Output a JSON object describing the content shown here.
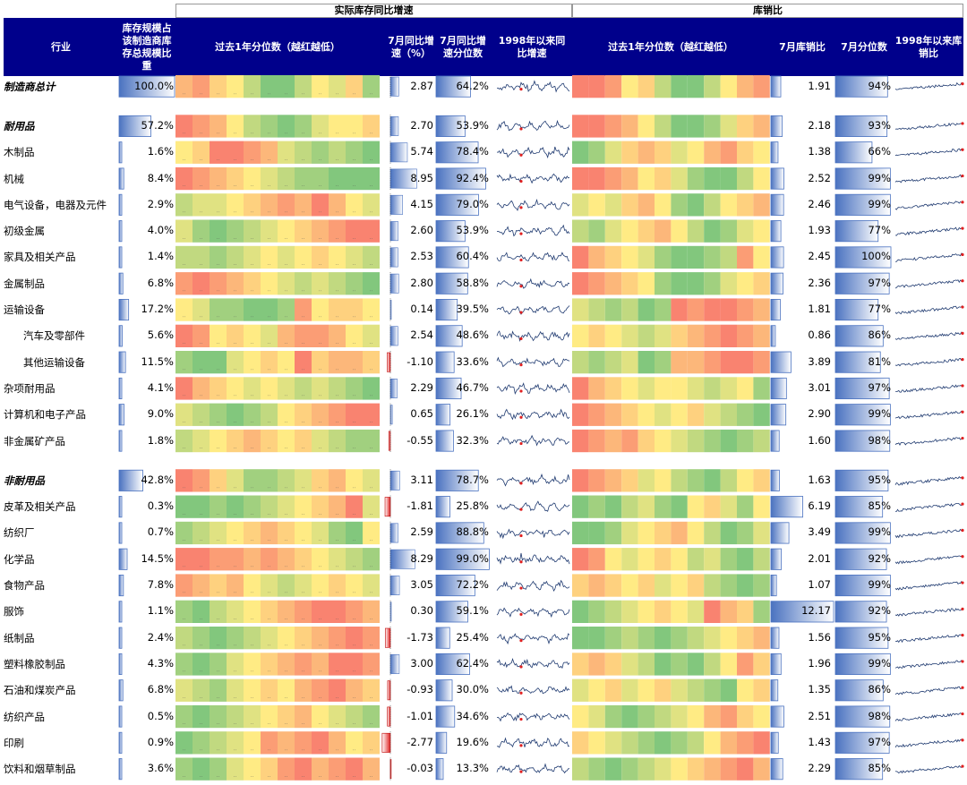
{
  "groups": {
    "inventory": "实际库存同比增速",
    "ratio": "库销比"
  },
  "headers": {
    "industry": "行业",
    "weight": "库存规模占该制造商库存总规模比重",
    "heat_inv": "过去1年分位数（越红越低）",
    "yoy": "7月同比增速（%）",
    "yoy_pct": "7月同比增速分位数",
    "spark_inv": "1998年以来同比增速",
    "heat_ratio": "过去1年分位数（越红越低）",
    "ratio": "7月库销比",
    "ratio_pct": "7月分位数",
    "spark_ratio": "1998年以来库销比"
  },
  "colors": {
    "header_bg": "#00008B",
    "bar_blue": "#4A72C0",
    "bar_red": "#E02020",
    "low": "#F8696B",
    "mid": "#FFEB84",
    "high": "#63BE7B"
  },
  "chart_data": {
    "type": "table",
    "rows": [
      {
        "name": "制造商总计",
        "bold": true,
        "weight": "100.0%",
        "weight_v": 100.0,
        "yoy": "2.87",
        "yoy_v": 2.87,
        "yoy_pct": "64.2%",
        "yoy_pct_v": 64.2,
        "ratio": "1.91",
        "ratio_v": 1.91,
        "ratio_pct": "94%",
        "ratio_pct_v": 94,
        "heat_inv": [
          0.3,
          0.2,
          0.4,
          0.5,
          0.7,
          0.9,
          0.9,
          0.7,
          0.5,
          0.6,
          0.4,
          0.8
        ],
        "heat_ratio": [
          0.1,
          0.1,
          0.2,
          0.5,
          0.4,
          0.7,
          0.9,
          0.9,
          0.7,
          0.5,
          0.3,
          0.2
        ]
      },
      {
        "gap": true
      },
      {
        "name": "耐用品",
        "bold": true,
        "weight": "57.2%",
        "weight_v": 57.2,
        "yoy": "2.70",
        "yoy_v": 2.7,
        "yoy_pct": "53.9%",
        "yoy_pct_v": 53.9,
        "ratio": "2.18",
        "ratio_v": 2.18,
        "ratio_pct": "93%",
        "ratio_pct_v": 93,
        "heat_inv": [
          0.1,
          0.2,
          0.3,
          0.5,
          0.7,
          0.8,
          0.9,
          0.8,
          0.6,
          0.5,
          0.5,
          0.4
        ],
        "heat_ratio": [
          0.1,
          0.1,
          0.2,
          0.3,
          0.5,
          0.7,
          0.9,
          0.9,
          0.8,
          0.6,
          0.4,
          0.3
        ]
      },
      {
        "name": "木制品",
        "weight": "1.6%",
        "weight_v": 1.6,
        "yoy": "5.74",
        "yoy_v": 5.74,
        "yoy_pct": "78.4%",
        "yoy_pct_v": 78.4,
        "ratio": "1.38",
        "ratio_v": 1.38,
        "ratio_pct": "66%",
        "ratio_pct_v": 66,
        "heat_inv": [
          0.5,
          0.4,
          0.1,
          0.1,
          0.2,
          0.3,
          0.6,
          0.7,
          0.8,
          0.7,
          0.8,
          0.9
        ],
        "heat_ratio": [
          0.9,
          0.8,
          0.6,
          0.4,
          0.3,
          0.4,
          0.6,
          0.5,
          0.3,
          0.2,
          0.4,
          0.5
        ]
      },
      {
        "name": "机械",
        "weight": "8.4%",
        "weight_v": 8.4,
        "yoy": "8.95",
        "yoy_v": 8.95,
        "yoy_pct": "92.4%",
        "yoy_pct_v": 92.4,
        "ratio": "2.52",
        "ratio_v": 2.52,
        "ratio_pct": "99%",
        "ratio_pct_v": 99,
        "heat_inv": [
          0.1,
          0.2,
          0.3,
          0.4,
          0.5,
          0.6,
          0.7,
          0.8,
          0.8,
          0.9,
          0.9,
          0.9
        ],
        "heat_ratio": [
          0.1,
          0.1,
          0.2,
          0.3,
          0.5,
          0.4,
          0.6,
          0.8,
          0.9,
          0.9,
          0.7,
          0.5
        ]
      },
      {
        "name": "电气设备，电器及元件",
        "weight": "2.9%",
        "weight_v": 2.9,
        "yoy": "4.15",
        "yoy_v": 4.15,
        "yoy_pct": "79.0%",
        "yoy_pct_v": 79.0,
        "ratio": "2.46",
        "ratio_v": 2.46,
        "ratio_pct": "99%",
        "ratio_pct_v": 99,
        "heat_inv": [
          0.7,
          0.6,
          0.6,
          0.5,
          0.4,
          0.3,
          0.2,
          0.3,
          0.1,
          0.3,
          0.5,
          0.6
        ],
        "heat_ratio": [
          0.6,
          0.5,
          0.6,
          0.4,
          0.3,
          0.5,
          0.8,
          0.9,
          0.7,
          0.5,
          0.4,
          0.3
        ]
      },
      {
        "name": "初级金属",
        "weight": "4.0%",
        "weight_v": 4.0,
        "yoy": "2.60",
        "yoy_v": 2.6,
        "yoy_pct": "53.9%",
        "yoy_pct_v": 53.9,
        "ratio": "1.93",
        "ratio_v": 1.93,
        "ratio_pct": "77%",
        "ratio_pct_v": 77,
        "heat_inv": [
          0.6,
          0.8,
          0.9,
          0.8,
          0.7,
          0.6,
          0.5,
          0.4,
          0.3,
          0.2,
          0.1,
          0.1
        ],
        "heat_ratio": [
          0.7,
          0.8,
          0.6,
          0.5,
          0.4,
          0.3,
          0.5,
          0.7,
          0.9,
          0.8,
          0.6,
          0.5
        ]
      },
      {
        "name": "家具及相关产品",
        "weight": "1.4%",
        "weight_v": 1.4,
        "yoy": "2.53",
        "yoy_v": 2.53,
        "yoy_pct": "60.4%",
        "yoy_pct_v": 60.4,
        "ratio": "2.45",
        "ratio_v": 2.45,
        "ratio_pct": "100%",
        "ratio_pct_v": 100,
        "heat_inv": [
          0.7,
          0.7,
          0.8,
          0.7,
          0.6,
          0.5,
          0.6,
          0.5,
          0.4,
          0.5,
          0.6,
          0.7
        ],
        "heat_ratio": [
          0.1,
          0.3,
          0.4,
          0.5,
          0.6,
          0.8,
          0.9,
          0.9,
          0.8,
          0.7,
          0.2,
          0.5
        ]
      },
      {
        "name": "金属制品",
        "weight": "6.8%",
        "weight_v": 6.8,
        "yoy": "2.80",
        "yoy_v": 2.8,
        "yoy_pct": "58.8%",
        "yoy_pct_v": 58.8,
        "ratio": "2.36",
        "ratio_v": 2.36,
        "ratio_pct": "97%",
        "ratio_pct_v": 97,
        "heat_inv": [
          0.2,
          0.1,
          0.2,
          0.3,
          0.4,
          0.5,
          0.6,
          0.7,
          0.6,
          0.7,
          0.8,
          0.9
        ],
        "heat_ratio": [
          0.1,
          0.2,
          0.3,
          0.4,
          0.5,
          0.8,
          0.9,
          0.9,
          0.8,
          0.6,
          0.5,
          0.4
        ]
      },
      {
        "name": "运输设备",
        "weight": "17.2%",
        "weight_v": 17.2,
        "yoy": "0.14",
        "yoy_v": 0.14,
        "yoy_pct": "39.5%",
        "yoy_pct_v": 39.5,
        "ratio": "1.81",
        "ratio_v": 1.81,
        "ratio_pct": "77%",
        "ratio_pct_v": 77,
        "heat_inv": [
          0.5,
          0.6,
          0.8,
          0.8,
          0.9,
          0.9,
          0.8,
          0.2,
          0.5,
          0.4,
          0.4,
          0.5
        ],
        "heat_ratio": [
          0.6,
          0.7,
          0.8,
          0.7,
          0.9,
          0.8,
          0.1,
          0.2,
          0.1,
          0.1,
          0.2,
          0.3
        ]
      },
      {
        "name": "汽车及零部件",
        "indent": true,
        "weight": "5.6%",
        "weight_v": 5.6,
        "yoy": "2.54",
        "yoy_v": 2.54,
        "yoy_pct": "48.6%",
        "yoy_pct_v": 48.6,
        "ratio": "0.86",
        "ratio_v": 0.86,
        "ratio_pct": "86%",
        "ratio_pct_v": 86,
        "heat_inv": [
          0.1,
          0.2,
          0.5,
          0.4,
          0.5,
          0.6,
          0.3,
          0.2,
          0.2,
          0.3,
          0.5,
          0.6
        ],
        "heat_ratio": [
          0.5,
          0.4,
          0.5,
          0.6,
          0.7,
          0.6,
          0.4,
          0.3,
          0.2,
          0.1,
          0.2,
          0.3
        ]
      },
      {
        "name": "其他运输设备",
        "indent": true,
        "weight": "11.5%",
        "weight_v": 11.5,
        "yoy": "-1.10",
        "yoy_v": -1.1,
        "yoy_pct": "33.6%",
        "yoy_pct_v": 33.6,
        "ratio": "3.89",
        "ratio_v": 3.89,
        "ratio_pct": "81%",
        "ratio_pct_v": 81,
        "heat_inv": [
          0.8,
          0.9,
          0.9,
          0.6,
          0.5,
          0.4,
          0.5,
          0.1,
          0.4,
          0.3,
          0.3,
          0.4
        ],
        "heat_ratio": [
          0.7,
          0.8,
          0.7,
          0.6,
          0.9,
          0.8,
          0.3,
          0.3,
          0.2,
          0.1,
          0.1,
          0.2
        ]
      },
      {
        "name": "杂项耐用品",
        "weight": "4.1%",
        "weight_v": 4.1,
        "yoy": "2.29",
        "yoy_v": 2.29,
        "yoy_pct": "46.7%",
        "yoy_pct_v": 46.7,
        "ratio": "3.01",
        "ratio_v": 3.01,
        "ratio_pct": "97%",
        "ratio_pct_v": 97,
        "heat_inv": [
          0.1,
          0.3,
          0.4,
          0.5,
          0.6,
          0.5,
          0.6,
          0.7,
          0.6,
          0.7,
          0.8,
          0.9
        ],
        "heat_ratio": [
          0.1,
          0.3,
          0.4,
          0.5,
          0.6,
          0.5,
          0.5,
          0.6,
          0.7,
          0.6,
          0.5,
          0.8
        ]
      },
      {
        "name": "计算机和电子产品",
        "weight": "9.0%",
        "weight_v": 9.0,
        "yoy": "0.65",
        "yoy_v": 0.65,
        "yoy_pct": "26.1%",
        "yoy_pct_v": 26.1,
        "ratio": "2.90",
        "ratio_v": 2.9,
        "ratio_pct": "99%",
        "ratio_pct_v": 99,
        "heat_inv": [
          0.6,
          0.7,
          0.8,
          0.9,
          0.8,
          0.7,
          0.5,
          0.4,
          0.3,
          0.2,
          0.1,
          0.1
        ],
        "heat_ratio": [
          0.1,
          0.2,
          0.3,
          0.4,
          0.5,
          0.6,
          0.5,
          0.4,
          0.6,
          0.7,
          0.8,
          0.9
        ]
      },
      {
        "name": "非金属矿产品",
        "weight": "1.8%",
        "weight_v": 1.8,
        "yoy": "-0.55",
        "yoy_v": -0.55,
        "yoy_pct": "32.3%",
        "yoy_pct_v": 32.3,
        "ratio": "1.60",
        "ratio_v": 1.6,
        "ratio_pct": "98%",
        "ratio_pct_v": 98,
        "heat_inv": [
          0.7,
          0.6,
          0.5,
          0.4,
          0.3,
          0.4,
          0.5,
          0.4,
          0.6,
          0.7,
          0.8,
          0.8
        ],
        "heat_ratio": [
          0.1,
          0.2,
          0.3,
          0.2,
          0.4,
          0.5,
          0.6,
          0.7,
          0.8,
          0.9,
          0.8,
          0.7
        ]
      },
      {
        "gap": true
      },
      {
        "name": "非耐用品",
        "bold": true,
        "weight": "42.8%",
        "weight_v": 42.8,
        "yoy": "3.11",
        "yoy_v": 3.11,
        "yoy_pct": "78.7%",
        "yoy_pct_v": 78.7,
        "ratio": "1.63",
        "ratio_v": 1.63,
        "ratio_pct": "95%",
        "ratio_pct_v": 95,
        "heat_inv": [
          0.1,
          0.2,
          0.4,
          0.6,
          0.8,
          0.8,
          0.7,
          0.6,
          0.4,
          0.3,
          0.5,
          0.6
        ],
        "heat_ratio": [
          0.1,
          0.2,
          0.3,
          0.4,
          0.6,
          0.5,
          0.7,
          0.8,
          0.9,
          0.7,
          0.5,
          0.4
        ]
      },
      {
        "name": "皮革及相关产品",
        "weight": "0.3%",
        "weight_v": 0.3,
        "yoy": "-1.81",
        "yoy_v": -1.81,
        "yoy_pct": "25.8%",
        "yoy_pct_v": 25.8,
        "ratio": "6.19",
        "ratio_v": 6.19,
        "ratio_pct": "85%",
        "ratio_pct_v": 85,
        "heat_inv": [
          0.9,
          0.9,
          0.8,
          0.9,
          0.8,
          0.7,
          0.6,
          0.5,
          0.4,
          0.3,
          0.1,
          0.6
        ],
        "heat_ratio": [
          0.9,
          0.8,
          0.9,
          0.7,
          0.6,
          0.8,
          0.9,
          0.5,
          0.4,
          0.6,
          0.8,
          0.5
        ]
      },
      {
        "name": "纺织厂",
        "weight": "0.7%",
        "weight_v": 0.7,
        "yoy": "2.59",
        "yoy_v": 2.59,
        "yoy_pct": "88.8%",
        "yoy_pct_v": 88.8,
        "ratio": "3.49",
        "ratio_v": 3.49,
        "ratio_pct": "99%",
        "ratio_pct_v": 99,
        "heat_inv": [
          0.8,
          0.7,
          0.6,
          0.5,
          0.4,
          0.3,
          0.4,
          0.5,
          0.6,
          0.8,
          0.9,
          0.5
        ],
        "heat_ratio": [
          0.9,
          0.9,
          0.8,
          0.6,
          0.5,
          0.4,
          0.3,
          0.5,
          0.7,
          0.9,
          0.8,
          0.6
        ]
      },
      {
        "name": "化学品",
        "weight": "14.5%",
        "weight_v": 14.5,
        "yoy": "8.29",
        "yoy_v": 8.29,
        "yoy_pct": "99.0%",
        "yoy_pct_v": 99.0,
        "ratio": "2.01",
        "ratio_v": 2.01,
        "ratio_pct": "92%",
        "ratio_pct_v": 92,
        "heat_inv": [
          0.1,
          0.1,
          0.2,
          0.2,
          0.3,
          0.2,
          0.3,
          0.4,
          0.5,
          0.6,
          0.7,
          0.8
        ],
        "heat_ratio": [
          0.1,
          0.2,
          0.5,
          0.6,
          0.5,
          0.4,
          0.5,
          0.7,
          0.6,
          0.8,
          0.9,
          0.7
        ]
      },
      {
        "name": "食物产品",
        "weight": "7.8%",
        "weight_v": 7.8,
        "yoy": "3.05",
        "yoy_v": 3.05,
        "yoy_pct": "72.2%",
        "yoy_pct_v": 72.2,
        "ratio": "1.07",
        "ratio_v": 1.07,
        "ratio_pct": "99%",
        "ratio_pct_v": 99,
        "heat_inv": [
          0.2,
          0.3,
          0.4,
          0.3,
          0.5,
          0.6,
          0.7,
          0.6,
          0.5,
          0.4,
          0.5,
          0.6
        ],
        "heat_ratio": [
          0.4,
          0.3,
          0.4,
          0.5,
          0.4,
          0.6,
          0.5,
          0.4,
          0.7,
          0.8,
          0.9,
          0.8
        ]
      },
      {
        "name": "服饰",
        "weight": "1.1%",
        "weight_v": 1.1,
        "yoy": "0.30",
        "yoy_v": 0.3,
        "yoy_pct": "59.1%",
        "yoy_pct_v": 59.1,
        "ratio": "12.17",
        "ratio_v": 12.17,
        "ratio_pct": "92%",
        "ratio_pct_v": 92,
        "heat_inv": [
          0.8,
          0.9,
          0.7,
          0.6,
          0.5,
          0.4,
          0.3,
          0.2,
          0.1,
          0.1,
          0.2,
          0.3
        ],
        "heat_ratio": [
          0.9,
          0.8,
          0.7,
          0.6,
          0.5,
          0.4,
          0.5,
          0.6,
          0.1,
          0.3,
          0.4,
          0.8
        ]
      },
      {
        "name": "纸制品",
        "weight": "2.4%",
        "weight_v": 2.4,
        "yoy": "-1.73",
        "yoy_v": -1.73,
        "yoy_pct": "25.4%",
        "yoy_pct_v": 25.4,
        "ratio": "1.56",
        "ratio_v": 1.56,
        "ratio_pct": "95%",
        "ratio_pct_v": 95,
        "heat_inv": [
          0.7,
          0.8,
          0.9,
          0.8,
          0.7,
          0.6,
          0.5,
          0.4,
          0.3,
          0.2,
          0.1,
          0.2
        ],
        "heat_ratio": [
          0.9,
          0.9,
          0.8,
          0.7,
          0.8,
          0.9,
          0.8,
          0.7,
          0.6,
          0.5,
          0.4,
          0.3
        ]
      },
      {
        "name": "塑料橡胶制品",
        "weight": "4.3%",
        "weight_v": 4.3,
        "yoy": "3.00",
        "yoy_v": 3.0,
        "yoy_pct": "62.4%",
        "yoy_pct_v": 62.4,
        "ratio": "1.96",
        "ratio_v": 1.96,
        "ratio_pct": "99%",
        "ratio_pct_v": 99,
        "heat_inv": [
          0.8,
          0.9,
          0.8,
          0.6,
          0.5,
          0.4,
          0.3,
          0.2,
          0.3,
          0.1,
          0.1,
          0.2
        ],
        "heat_ratio": [
          0.4,
          0.3,
          0.4,
          0.6,
          0.7,
          0.9,
          0.8,
          0.9,
          0.7,
          0.5,
          0.2,
          0.4
        ]
      },
      {
        "name": "石油和煤炭产品",
        "weight": "6.8%",
        "weight_v": 6.8,
        "yoy": "-0.93",
        "yoy_v": -0.93,
        "yoy_pct": "30.0%",
        "yoy_pct_v": 30.0,
        "ratio": "1.35",
        "ratio_v": 1.35,
        "ratio_pct": "86%",
        "ratio_pct_v": 86,
        "heat_inv": [
          0.6,
          0.7,
          0.8,
          0.6,
          0.5,
          0.4,
          0.5,
          0.3,
          0.2,
          0.1,
          0.3,
          0.4
        ],
        "heat_ratio": [
          0.6,
          0.5,
          0.4,
          0.6,
          0.5,
          0.4,
          0.6,
          0.7,
          0.8,
          0.9,
          0.5,
          0.4
        ]
      },
      {
        "name": "纺织产品",
        "weight": "0.5%",
        "weight_v": 0.5,
        "yoy": "-1.01",
        "yoy_v": -1.01,
        "yoy_pct": "34.6%",
        "yoy_pct_v": 34.6,
        "ratio": "2.51",
        "ratio_v": 2.51,
        "ratio_pct": "98%",
        "ratio_pct_v": 98,
        "heat_inv": [
          0.8,
          0.9,
          0.8,
          0.7,
          0.6,
          0.5,
          0.4,
          0.3,
          0.5,
          0.6,
          0.7,
          0.8
        ],
        "heat_ratio": [
          0.5,
          0.6,
          0.8,
          0.9,
          0.8,
          0.7,
          0.6,
          0.5,
          0.3,
          0.2,
          0.4,
          0.5
        ]
      },
      {
        "name": "印刷",
        "weight": "0.9%",
        "weight_v": 0.9,
        "yoy": "-2.77",
        "yoy_v": -2.77,
        "yoy_pct": "19.6%",
        "yoy_pct_v": 19.6,
        "ratio": "1.43",
        "ratio_v": 1.43,
        "ratio_pct": "97%",
        "ratio_pct_v": 97,
        "heat_inv": [
          0.9,
          0.8,
          0.7,
          0.6,
          0.5,
          0.2,
          0.3,
          0.2,
          0.1,
          0.3,
          0.5,
          0.4
        ],
        "heat_ratio": [
          0.4,
          0.5,
          0.6,
          0.7,
          0.8,
          0.9,
          0.8,
          0.7,
          0.5,
          0.3,
          0.2,
          0.1
        ]
      },
      {
        "name": "饮料和烟草制品",
        "weight": "3.6%",
        "weight_v": 3.6,
        "yoy": "-0.03",
        "yoy_v": -0.03,
        "yoy_pct": "13.3%",
        "yoy_pct_v": 13.3,
        "ratio": "2.29",
        "ratio_v": 2.29,
        "ratio_pct": "85%",
        "ratio_pct_v": 85,
        "heat_inv": [
          0.8,
          0.9,
          0.8,
          0.6,
          0.5,
          0.4,
          0.2,
          0.1,
          0.3,
          0.2,
          0.1,
          0.3
        ],
        "heat_ratio": [
          0.7,
          0.8,
          0.9,
          0.8,
          0.7,
          0.6,
          0.5,
          0.4,
          0.3,
          0.2,
          0.1,
          0.3
        ]
      }
    ]
  }
}
